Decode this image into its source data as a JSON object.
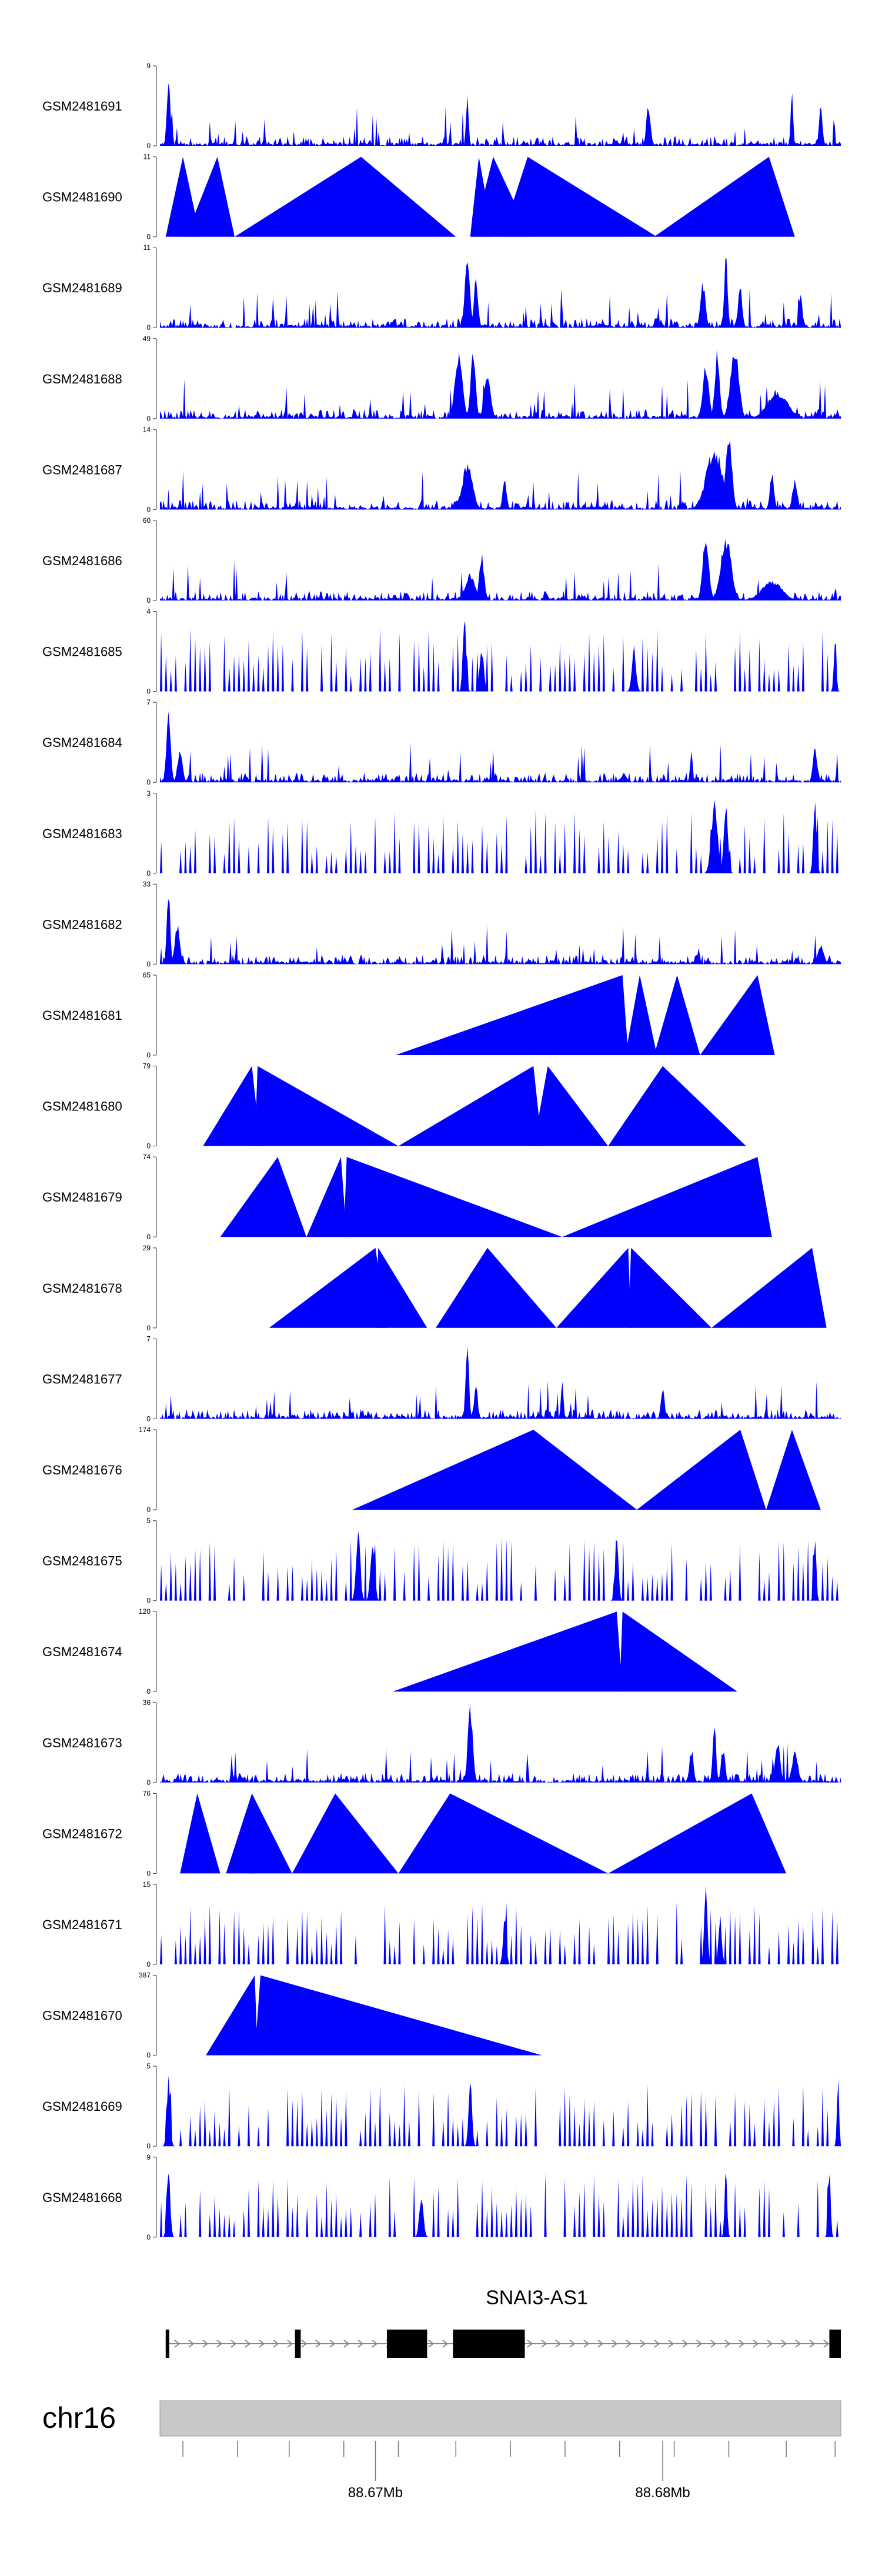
{
  "chart_data": {
    "type": "area",
    "title": "",
    "x_range_mb": [
      88.6625,
      88.6862
    ],
    "tracks": [
      {
        "name": "GSM2481691",
        "ymax": 9,
        "pattern": "noisy",
        "seed": 1,
        "peaks": [
          [
            88.6628,
            1.0,
            8e-05
          ],
          [
            88.6732,
            0.75,
            6e-05
          ],
          [
            88.6795,
            0.55,
            0.0001
          ],
          [
            88.6845,
            0.72,
            6e-05
          ],
          [
            88.6855,
            0.55,
            8e-05
          ]
        ]
      },
      {
        "name": "GSM2481690",
        "ymax": 11,
        "pattern": "sparse",
        "seed": 2,
        "peaks": [],
        "tri": [
          [
            88.6627,
            88.6633,
            88.6639
          ],
          [
            88.6634,
            88.6645,
            88.6651
          ],
          [
            88.6651,
            88.6695,
            88.6728
          ],
          [
            88.6733,
            88.6736,
            88.6741
          ],
          [
            88.6734,
            88.6741,
            88.6754
          ],
          [
            88.6744,
            88.6753,
            88.6798
          ],
          [
            88.6797,
            88.6837,
            88.6846
          ]
        ]
      },
      {
        "name": "GSM2481689",
        "ymax": 11,
        "pattern": "noisy",
        "seed": 3,
        "peaks": [
          [
            88.6732,
            1.0,
            0.00012
          ],
          [
            88.6735,
            0.65,
            0.0001
          ],
          [
            88.6814,
            0.6,
            0.00012
          ],
          [
            88.6822,
            1.0,
            8e-05
          ],
          [
            88.6827,
            0.55,
            0.0001
          ],
          [
            88.6848,
            0.45,
            8e-05
          ]
        ]
      },
      {
        "name": "GSM2481688",
        "ymax": 49,
        "pattern": "noisy",
        "seed": 4,
        "peaks": [
          [
            88.6729,
            0.85,
            0.00018
          ],
          [
            88.6734,
            0.9,
            0.00012
          ],
          [
            88.6739,
            0.65,
            0.00015
          ],
          [
            88.6815,
            0.7,
            0.00015
          ],
          [
            88.6819,
            0.9,
            0.00012
          ],
          [
            88.6825,
            1.0,
            0.0002
          ],
          [
            88.684,
            0.35,
            0.0005
          ]
        ]
      },
      {
        "name": "GSM2481687",
        "ymax": 14,
        "pattern": "noisy",
        "seed": 5,
        "peaks": [
          [
            88.6732,
            0.6,
            0.00025
          ],
          [
            88.6745,
            0.4,
            0.0001
          ],
          [
            88.6818,
            0.8,
            0.0004
          ],
          [
            88.6823,
            1.0,
            0.00015
          ],
          [
            88.6838,
            0.5,
            0.0001
          ],
          [
            88.6846,
            0.4,
            0.00012
          ]
        ]
      },
      {
        "name": "GSM2481686",
        "ymax": 60,
        "pattern": "noisy",
        "seed": 6,
        "peaks": [
          [
            88.6733,
            0.35,
            0.00025
          ],
          [
            88.6737,
            0.6,
            0.00012
          ],
          [
            88.6815,
            0.9,
            0.00015
          ],
          [
            88.6822,
            0.85,
            0.00025
          ],
          [
            88.6838,
            0.25,
            0.0005
          ]
        ]
      },
      {
        "name": "GSM2481685",
        "ymax": 4,
        "pattern": "spikes",
        "seed": 7,
        "peaks": [
          [
            88.6731,
            1.0,
            8e-05
          ],
          [
            88.6737,
            0.6,
            0.0001
          ],
          [
            88.679,
            0.6,
            0.0001
          ],
          [
            88.686,
            0.8,
            6e-05
          ]
        ]
      },
      {
        "name": "GSM2481684",
        "ymax": 7,
        "pattern": "noisy",
        "seed": 8,
        "peaks": [
          [
            88.6628,
            1.0,
            0.0001
          ],
          [
            88.6632,
            0.45,
            0.00012
          ],
          [
            88.681,
            0.4,
            6e-05
          ],
          [
            88.6853,
            0.5,
            0.0001
          ]
        ]
      },
      {
        "name": "GSM2481683",
        "ymax": 3,
        "pattern": "spikes",
        "seed": 9,
        "peaks": [
          [
            88.6818,
            1.0,
            0.00015
          ],
          [
            88.6822,
            0.9,
            0.0001
          ],
          [
            88.6853,
            1.0,
            8e-05
          ]
        ]
      },
      {
        "name": "GSM2481682",
        "ymax": 33,
        "pattern": "noisy",
        "seed": 10,
        "peaks": [
          [
            88.6628,
            1.0,
            8e-05
          ],
          [
            88.6631,
            0.55,
            0.00012
          ],
          [
            88.6855,
            0.25,
            0.00015
          ]
        ]
      },
      {
        "name": "GSM2481681",
        "ymax": 65,
        "pattern": "sparse",
        "seed": 11,
        "peaks": [],
        "tri": [
          [
            88.6707,
            88.6786,
            88.6788
          ],
          [
            88.6787,
            88.6792,
            88.6798
          ],
          [
            88.6797,
            88.6805,
            88.6813
          ],
          [
            88.6813,
            88.6833,
            88.6839
          ]
        ]
      },
      {
        "name": "GSM2481680",
        "ymax": 79,
        "pattern": "sparse",
        "seed": 12,
        "peaks": [],
        "tri": [
          [
            88.664,
            88.6657,
            88.666
          ],
          [
            88.6658,
            88.6659,
            88.6708
          ],
          [
            88.6708,
            88.6755,
            88.6758
          ],
          [
            88.6755,
            88.676,
            88.6781
          ],
          [
            88.6781,
            88.68,
            88.6829
          ]
        ]
      },
      {
        "name": "GSM2481679",
        "ymax": 74,
        "pattern": "sparse",
        "seed": 13,
        "peaks": [],
        "tri": [
          [
            88.6646,
            88.6666,
            88.6676
          ],
          [
            88.6676,
            88.6688,
            88.669
          ],
          [
            88.6689,
            88.669,
            88.6765
          ],
          [
            88.6765,
            88.6833,
            88.6838
          ]
        ]
      },
      {
        "name": "GSM2481678",
        "ymax": 29,
        "pattern": "sparse",
        "seed": 14,
        "peaks": [],
        "tri": [
          [
            88.6663,
            88.67,
            88.6704
          ],
          [
            88.67,
            88.6701,
            88.6718
          ],
          [
            88.6721,
            88.6739,
            88.6763
          ],
          [
            88.6763,
            88.6788,
            88.6789
          ],
          [
            88.6788,
            88.6789,
            88.6817
          ],
          [
            88.6817,
            88.6852,
            88.6857
          ]
        ]
      },
      {
        "name": "GSM2481677",
        "ymax": 7,
        "pattern": "noisy",
        "seed": 15,
        "peaks": [
          [
            88.6732,
            1.0,
            8e-05
          ],
          [
            88.6735,
            0.5,
            8e-05
          ],
          [
            88.6765,
            0.55,
            6e-05
          ],
          [
            88.68,
            0.45,
            8e-05
          ]
        ]
      },
      {
        "name": "GSM2481676",
        "ymax": 174,
        "pattern": "sparse",
        "seed": 16,
        "peaks": [],
        "tri": [
          [
            88.6692,
            88.6755,
            88.6791
          ],
          [
            88.6791,
            88.6827,
            88.6836
          ],
          [
            88.6836,
            88.6845,
            88.6855
          ]
        ]
      },
      {
        "name": "GSM2481675",
        "ymax": 5,
        "pattern": "spikes",
        "seed": 17,
        "peaks": [
          [
            88.6694,
            1.0,
            0.0001
          ],
          [
            88.6699,
            0.85,
            0.0001
          ],
          [
            88.6784,
            1.0,
            8e-05
          ],
          [
            88.6853,
            1.0,
            6e-05
          ]
        ]
      },
      {
        "name": "GSM2481674",
        "ymax": 120,
        "pattern": "sparse",
        "seed": 18,
        "peaks": [],
        "tri": [
          [
            88.6706,
            88.6784,
            88.6786
          ],
          [
            88.6785,
            88.6786,
            88.6826
          ]
        ]
      },
      {
        "name": "GSM2481673",
        "ymax": 36,
        "pattern": "noisy",
        "seed": 19,
        "peaks": [
          [
            88.6733,
            1.0,
            0.00012
          ],
          [
            88.681,
            0.45,
            0.0001
          ],
          [
            88.6818,
            0.8,
            8e-05
          ],
          [
            88.6821,
            0.45,
            0.0001
          ],
          [
            88.684,
            0.55,
            0.00012
          ],
          [
            88.6846,
            0.4,
            0.00015
          ]
        ]
      },
      {
        "name": "GSM2481672",
        "ymax": 76,
        "pattern": "sparse",
        "seed": 20,
        "peaks": [],
        "tri": [
          [
            88.6632,
            88.6638,
            88.6646
          ],
          [
            88.6648,
            88.6657,
            88.6658
          ],
          [
            88.6656,
            88.6657,
            88.6671
          ],
          [
            88.6671,
            88.6686,
            88.6708
          ],
          [
            88.6708,
            88.6726,
            88.6781
          ],
          [
            88.6781,
            88.6831,
            88.6843
          ]
        ]
      },
      {
        "name": "GSM2481671",
        "ymax": 15,
        "pattern": "spikes",
        "seed": 21,
        "peaks": [
          [
            88.6815,
            1.0,
            8e-05
          ],
          [
            88.682,
            0.65,
            8e-05
          ],
          [
            88.6745,
            0.6,
            8e-05
          ]
        ]
      },
      {
        "name": "GSM2481670",
        "ymax": 387,
        "pattern": "sparse",
        "seed": 22,
        "peaks": [],
        "tri": [
          [
            88.6641,
            88.6658,
            88.6659
          ],
          [
            88.6658,
            88.666,
            88.6758
          ]
        ]
      },
      {
        "name": "GSM2481669",
        "ymax": 5,
        "pattern": "spikes",
        "seed": 23,
        "peaks": [
          [
            88.6628,
            1.0,
            8e-05
          ],
          [
            88.6733,
            0.95,
            8e-05
          ],
          [
            88.6861,
            1.0,
            5e-05
          ]
        ]
      },
      {
        "name": "GSM2481668",
        "ymax": 9,
        "pattern": "spikes",
        "seed": 24,
        "peaks": [
          [
            88.6628,
            1.0,
            8e-05
          ],
          [
            88.6716,
            0.55,
            0.0001
          ],
          [
            88.6822,
            1.0,
            6e-05
          ],
          [
            88.6858,
            1.0,
            6e-05
          ]
        ]
      }
    ],
    "gene": {
      "name": "SNAI3-AS1",
      "span_mb": [
        88.6627,
        88.6862
      ],
      "exons_mb": [
        [
          88.6627,
          88.6628
        ],
        [
          88.6672,
          88.6674
        ],
        [
          88.6704,
          88.6718
        ],
        [
          88.6727,
          88.6752
        ],
        [
          88.6858,
          88.6862
        ]
      ],
      "strand": "+"
    },
    "chromosome": {
      "name": "chr16",
      "minor_ticks_mb": [
        88.6633,
        88.6652,
        88.667,
        88.6689,
        88.6708,
        88.6728,
        88.6747,
        88.6766,
        88.6785,
        88.6804,
        88.6823,
        88.6843,
        88.686
      ],
      "major_ticks_mb": [
        88.67,
        88.68
      ],
      "major_tick_labels": [
        "88.67Mb",
        "88.68Mb"
      ]
    },
    "colors": {
      "signal": "#0000ff",
      "gene": "#000000",
      "ideogram": "#c8c8c8",
      "axis": "#555555"
    }
  }
}
